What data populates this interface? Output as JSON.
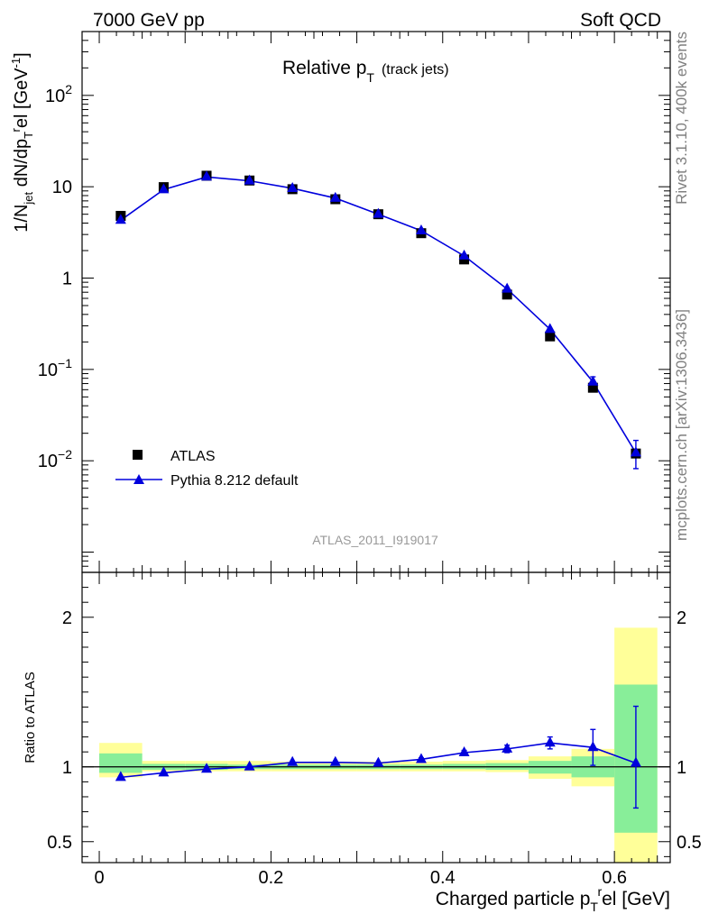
{
  "header": {
    "left": "7000 GeV pp",
    "right": "Soft QCD"
  },
  "side_labels": {
    "rivet": "Rivet 3.1.10,  400k events",
    "source": "mcplots.cern.ch [arXiv:1306.3436]"
  },
  "colors": {
    "data": "#000000",
    "mc": "#0000dd",
    "band_outer": "#ffff99",
    "band_inner": "#88ee99",
    "watermark": "#999999"
  },
  "chart_data": [
    {
      "type": "scatter",
      "panel": "main",
      "title_main": "Relative p",
      "title_sub": "T",
      "title_extra": "(track jets)",
      "ylabel": "1/N_jet dN/dp_T^rel [GeV^-1]",
      "yscale": "log",
      "xlim": [
        -0.02,
        0.665
      ],
      "ylim": [
        0.0006,
        500
      ],
      "ytick_labels": [
        "10^-2",
        "10^-1",
        "1",
        "10",
        "10^2"
      ],
      "watermark": "ATLAS_2011_I919017",
      "legend": {
        "position": "lower-left",
        "entries": [
          "ATLAS",
          "Pythia 8.212 default"
        ]
      },
      "x": [
        0.025,
        0.075,
        0.125,
        0.175,
        0.225,
        0.275,
        0.325,
        0.375,
        0.425,
        0.475,
        0.525,
        0.575,
        0.625
      ],
      "series": [
        {
          "name": "ATLAS",
          "marker": "square",
          "values": [
            4.8,
            9.9,
            13.2,
            11.7,
            9.4,
            7.3,
            5.0,
            3.1,
            1.6,
            0.66,
            0.23,
            0.063,
            0.012
          ]
        },
        {
          "name": "Pythia 8.212 default",
          "marker": "triangle",
          "line": true,
          "values": [
            4.3,
            9.3,
            12.8,
            11.6,
            9.6,
            7.5,
            5.0,
            3.3,
            1.75,
            0.76,
            0.275,
            0.073,
            0.0122
          ],
          "err_up": [
            0,
            0,
            0,
            0,
            0,
            0,
            0,
            0,
            0,
            0,
            0,
            0.01,
            0.0045
          ],
          "err_down": [
            0,
            0,
            0,
            0,
            0,
            0,
            0,
            0,
            0,
            0,
            0,
            0.01,
            0.004
          ]
        }
      ]
    },
    {
      "type": "scatter",
      "panel": "ratio",
      "ylabel": "Ratio to ATLAS",
      "xlabel": "Charged particle p_T^rel [GeV]",
      "xlim": [
        -0.02,
        0.665
      ],
      "ylim": [
        0.36,
        2.3
      ],
      "xticks": [
        0,
        0.2,
        0.4,
        0.6
      ],
      "xtick_labels": [
        "0",
        "0.2",
        "0.4",
        "0.6"
      ],
      "yticks": [
        0.5,
        1,
        2
      ],
      "ytick_labels": [
        "0.5",
        "1",
        "2"
      ],
      "bins": [
        [
          0.0,
          0.05
        ],
        [
          0.05,
          0.1
        ],
        [
          0.1,
          0.15
        ],
        [
          0.15,
          0.2
        ],
        [
          0.2,
          0.25
        ],
        [
          0.25,
          0.3
        ],
        [
          0.3,
          0.35
        ],
        [
          0.35,
          0.4
        ],
        [
          0.4,
          0.45
        ],
        [
          0.45,
          0.5
        ],
        [
          0.5,
          0.55
        ],
        [
          0.55,
          0.6
        ],
        [
          0.6,
          0.65
        ]
      ],
      "band_outer": [
        [
          0.93,
          1.16
        ],
        [
          0.97,
          1.04
        ],
        [
          0.97,
          1.04
        ],
        [
          0.97,
          1.04
        ],
        [
          0.97,
          1.035
        ],
        [
          0.97,
          1.035
        ],
        [
          0.97,
          1.035
        ],
        [
          0.97,
          1.035
        ],
        [
          0.97,
          1.04
        ],
        [
          0.965,
          1.045
        ],
        [
          0.92,
          1.07
        ],
        [
          0.87,
          1.12
        ],
        [
          0.36,
          1.93
        ]
      ],
      "band_inner": [
        [
          0.96,
          1.09
        ],
        [
          0.98,
          1.02
        ],
        [
          0.98,
          1.02
        ],
        [
          0.985,
          1.015
        ],
        [
          0.985,
          1.015
        ],
        [
          0.985,
          1.015
        ],
        [
          0.985,
          1.015
        ],
        [
          0.985,
          1.015
        ],
        [
          0.985,
          1.02
        ],
        [
          0.98,
          1.025
        ],
        [
          0.955,
          1.04
        ],
        [
          0.93,
          1.07
        ],
        [
          0.56,
          1.55
        ]
      ],
      "x": [
        0.025,
        0.075,
        0.125,
        0.175,
        0.225,
        0.275,
        0.325,
        0.375,
        0.425,
        0.475,
        0.525,
        0.575,
        0.625
      ],
      "series": [
        {
          "name": "Pythia 8.212 default / ATLAS",
          "values": [
            0.93,
            0.96,
            0.985,
            1.0,
            1.03,
            1.03,
            1.025,
            1.05,
            1.095,
            1.12,
            1.16,
            1.13,
            1.025
          ],
          "err_up": [
            0,
            0,
            0,
            0,
            0,
            0,
            0,
            0.01,
            0.015,
            0.025,
            0.04,
            0.12,
            0.38
          ],
          "err_down": [
            0,
            0,
            0,
            0,
            0,
            0,
            0,
            0.01,
            0.015,
            0.025,
            0.04,
            0.12,
            0.3
          ]
        }
      ]
    }
  ]
}
